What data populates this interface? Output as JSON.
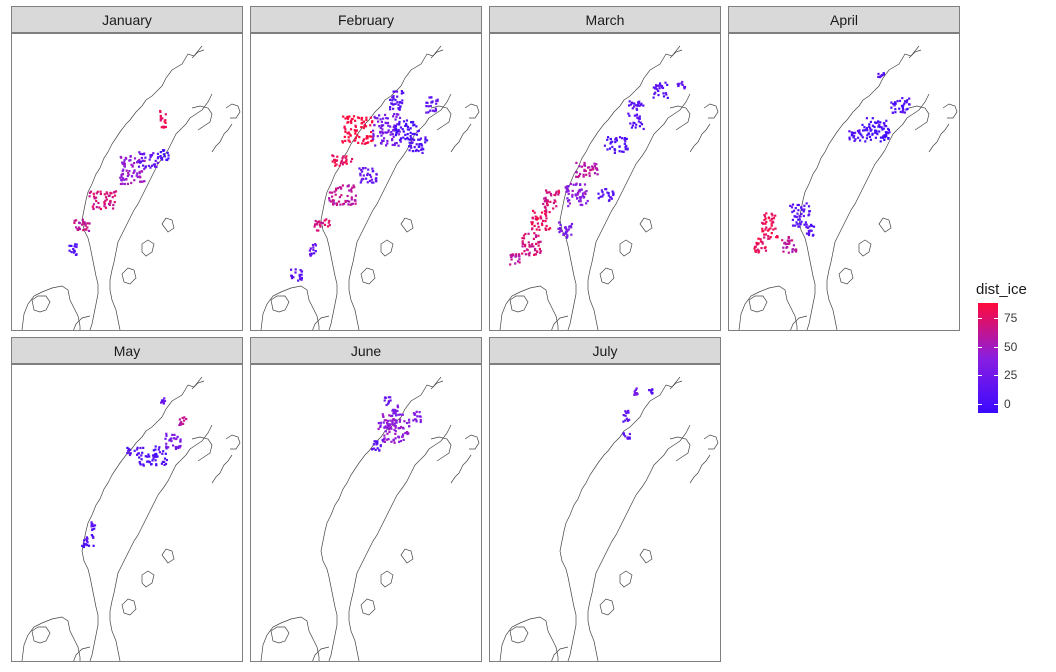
{
  "chart_data": {
    "type": "map",
    "facet_by": "month",
    "panels": [
      {
        "title": "January",
        "clusters": [
          [
            [
              120,
              135
            ],
            [
              13,
              14
            ],
            45
          ],
          [
            [
              135,
              125
            ],
            [
              10,
              8
            ],
            15
          ],
          [
            [
              150,
              120
            ],
            [
              6,
              5
            ],
            0
          ],
          [
            [
              90,
              165
            ],
            [
              14,
              9
            ],
            70
          ],
          [
            [
              70,
              190
            ],
            [
              10,
              6
            ],
            60
          ],
          [
            [
              60,
              215
            ],
            [
              4,
              6
            ],
            5
          ],
          [
            [
              150,
              85
            ],
            [
              3,
              10
            ],
            80
          ]
        ]
      },
      {
        "title": "February",
        "clusters": [
          [
            [
              105,
              95
            ],
            [
              16,
              14
            ],
            90
          ],
          [
            [
              135,
              95
            ],
            [
              14,
              16
            ],
            30
          ],
          [
            [
              155,
              95
            ],
            [
              12,
              10
            ],
            0
          ],
          [
            [
              165,
              110
            ],
            [
              10,
              8
            ],
            5
          ],
          [
            [
              145,
              65
            ],
            [
              8,
              10
            ],
            10
          ],
          [
            [
              180,
              70
            ],
            [
              6,
              8
            ],
            15
          ],
          [
            [
              90,
              160
            ],
            [
              14,
              10
            ],
            60
          ],
          [
            [
              70,
              190
            ],
            [
              8,
              6
            ],
            70
          ],
          [
            [
              60,
              215
            ],
            [
              4,
              6
            ],
            20
          ],
          [
            [
              45,
              240
            ],
            [
              6,
              6
            ],
            10
          ],
          [
            [
              115,
              140
            ],
            [
              10,
              8
            ],
            20
          ],
          [
            [
              90,
              125
            ],
            [
              10,
              6
            ],
            80
          ]
        ]
      },
      {
        "title": "March",
        "clusters": [
          [
            [
              145,
              80
            ],
            [
              8,
              14
            ],
            10
          ],
          [
            [
              170,
              55
            ],
            [
              8,
              8
            ],
            10
          ],
          [
            [
              125,
              110
            ],
            [
              12,
              8
            ],
            5
          ],
          [
            [
              95,
              135
            ],
            [
              12,
              8
            ],
            60
          ],
          [
            [
              85,
              160
            ],
            [
              12,
              12
            ],
            40
          ],
          [
            [
              60,
              165
            ],
            [
              8,
              10
            ],
            70
          ],
          [
            [
              50,
              185
            ],
            [
              10,
              10
            ],
            80
          ],
          [
            [
              40,
              210
            ],
            [
              10,
              12
            ],
            70
          ],
          [
            [
              25,
              225
            ],
            [
              6,
              6
            ],
            60
          ],
          [
            [
              115,
              160
            ],
            [
              8,
              6
            ],
            10
          ],
          [
            [
              190,
              50
            ],
            [
              4,
              4
            ],
            15
          ],
          [
            [
              75,
              195
            ],
            [
              8,
              8
            ],
            30
          ]
        ]
      },
      {
        "title": "April",
        "clusters": [
          [
            [
              145,
              95
            ],
            [
              16,
              12
            ],
            0
          ],
          [
            [
              170,
              70
            ],
            [
              10,
              8
            ],
            5
          ],
          [
            [
              125,
              100
            ],
            [
              6,
              6
            ],
            5
          ],
          [
            [
              70,
              180
            ],
            [
              10,
              12
            ],
            10
          ],
          [
            [
              40,
              190
            ],
            [
              8,
              14
            ],
            80
          ],
          [
            [
              30,
              210
            ],
            [
              6,
              8
            ],
            80
          ],
          [
            [
              60,
              210
            ],
            [
              8,
              8
            ],
            60
          ],
          [
            [
              80,
              195
            ],
            [
              4,
              6
            ],
            10
          ],
          [
            [
              150,
              40
            ],
            [
              4,
              2
            ],
            10
          ]
        ]
      },
      {
        "title": "May",
        "clusters": [
          [
            [
              140,
              90
            ],
            [
              14,
              10
            ],
            5
          ],
          [
            [
              160,
              75
            ],
            [
              8,
              8
            ],
            30
          ],
          [
            [
              120,
              85
            ],
            [
              6,
              4
            ],
            10
          ],
          [
            [
              75,
              175
            ],
            [
              6,
              6
            ],
            5
          ],
          [
            [
              80,
              160
            ],
            [
              2,
              4
            ],
            10
          ],
          [
            [
              150,
              35
            ],
            [
              2,
              4
            ],
            20
          ],
          [
            [
              170,
              55
            ],
            [
              4,
              4
            ],
            60
          ]
        ]
      },
      {
        "title": "June",
        "clusters": [
          [
            [
              145,
              65
            ],
            [
              14,
              12
            ],
            45
          ],
          [
            [
              135,
              55
            ],
            [
              10,
              8
            ],
            40
          ],
          [
            [
              145,
              45
            ],
            [
              6,
              6
            ],
            30
          ],
          [
            [
              125,
              80
            ],
            [
              6,
              6
            ],
            10
          ],
          [
            [
              165,
              50
            ],
            [
              4,
              6
            ],
            35
          ],
          [
            [
              135,
              35
            ],
            [
              4,
              4
            ],
            20
          ]
        ]
      },
      {
        "title": "July",
        "clusters": [
          [
            [
              145,
              25
            ],
            [
              2,
              4
            ],
            30
          ],
          [
            [
              135,
              50
            ],
            [
              3,
              6
            ],
            10
          ],
          [
            [
              135,
              70
            ],
            [
              4,
              3
            ],
            15
          ],
          [
            [
              160,
              25
            ],
            [
              2,
              3
            ],
            10
          ]
        ]
      }
    ],
    "colorbar": {
      "title": "dist_ice",
      "ticks": [
        0,
        25,
        50,
        75
      ],
      "range": [
        -8,
        88
      ],
      "low_color": "#3b0aff",
      "mid_color": "#8a1ee0",
      "high_color": "#ff0a3b"
    }
  }
}
